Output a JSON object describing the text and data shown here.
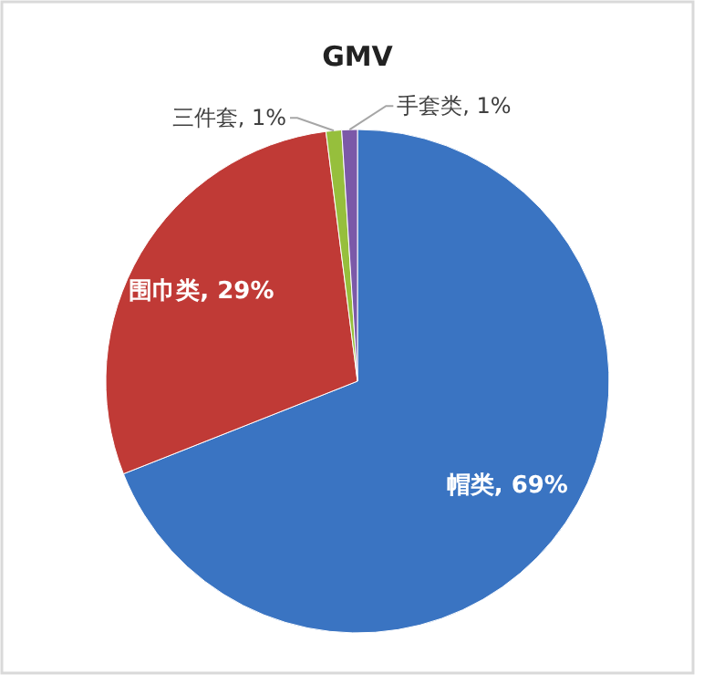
{
  "chart_data": {
    "type": "pie",
    "title": "GMV",
    "categories": [
      "帽类",
      "围巾类",
      "三件套",
      "手套类"
    ],
    "values": [
      69,
      29,
      1,
      1
    ],
    "colors": [
      "#3a74c2",
      "#c03a36",
      "#96bf3c",
      "#7b59a8"
    ],
    "value_labels": [
      ", 69%",
      ", 29%",
      ", 1%",
      ", 1%"
    ],
    "legend": false
  }
}
